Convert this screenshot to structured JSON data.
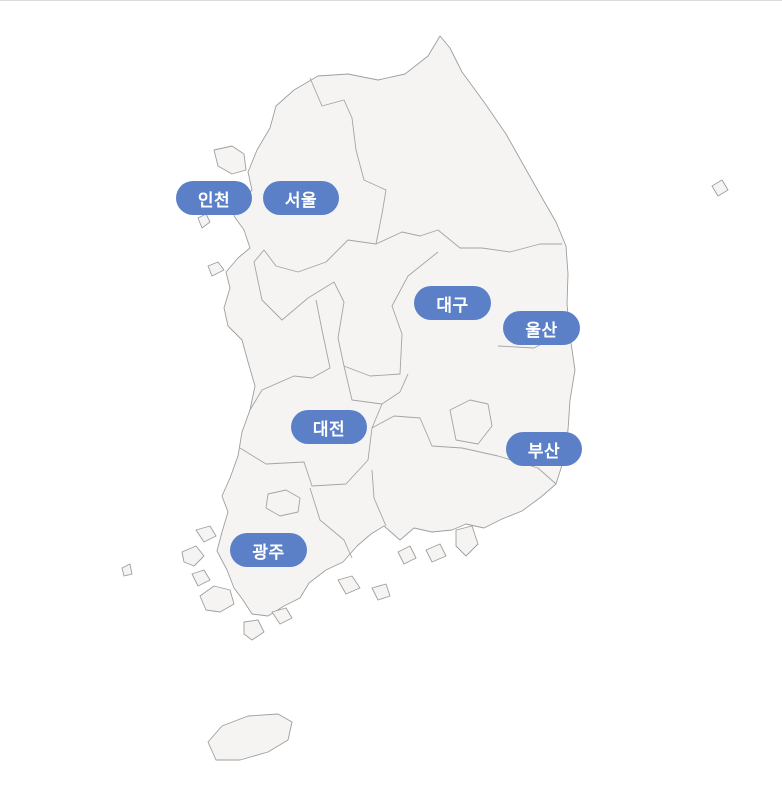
{
  "colors": {
    "pin_background": "#5b80c7",
    "pin_text": "#ffffff",
    "land": "#f5f4f3",
    "border": "#9e9e9e"
  },
  "cities": [
    {
      "id": "incheon",
      "label": "인천"
    },
    {
      "id": "seoul",
      "label": "서울"
    },
    {
      "id": "daegu",
      "label": "대구"
    },
    {
      "id": "ulsan",
      "label": "울산"
    },
    {
      "id": "daejeon",
      "label": "대전"
    },
    {
      "id": "busan",
      "label": "부산"
    },
    {
      "id": "gwangju",
      "label": "광주"
    }
  ]
}
